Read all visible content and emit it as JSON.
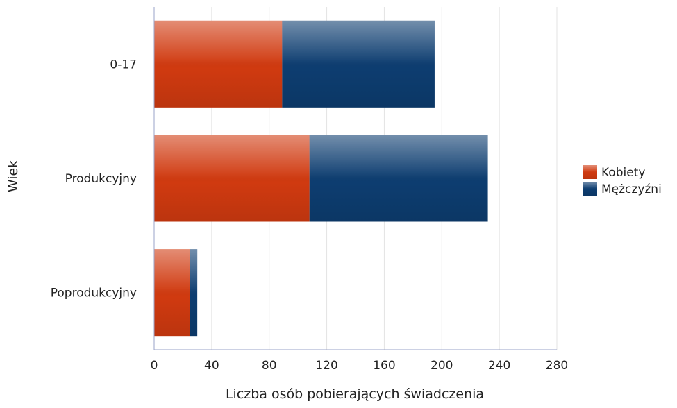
{
  "chart_data": {
    "type": "bar",
    "orientation": "horizontal",
    "stacked": true,
    "categories": [
      "0-17",
      "Produkcyjny",
      "Poprodukcyjny"
    ],
    "series": [
      {
        "name": "Kobiety",
        "values": [
          89,
          108,
          25
        ],
        "color": "#d03a10"
      },
      {
        "name": "Mężczyźni",
        "values": [
          106,
          124,
          5
        ],
        "color": "#0d3d70"
      }
    ],
    "title": "",
    "xlabel": "Liczba osób pobierających świadczenia",
    "ylabel": "Wiek",
    "xlim": [
      0,
      280
    ],
    "xticks": [
      0,
      40,
      80,
      120,
      160,
      200,
      240,
      280
    ],
    "grid": "vertical",
    "legend_position": "right"
  }
}
